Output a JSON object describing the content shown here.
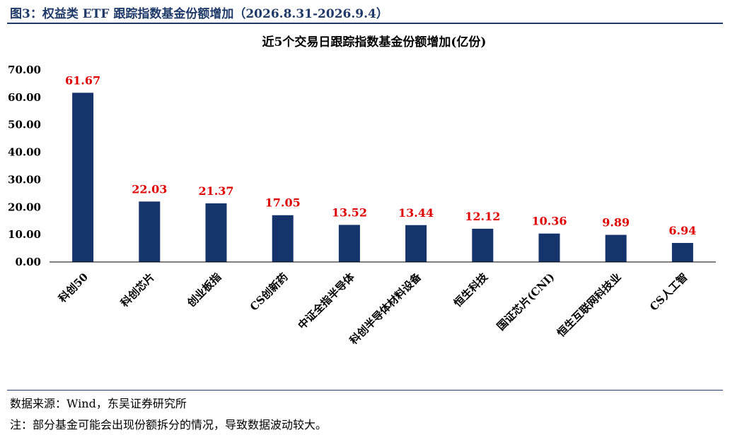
{
  "figure": {
    "title": "图3：权益类 ETF 跟踪指数基金份额增加（2026.8.31-2026.9.4）",
    "source": "数据来源：Wind，东吴证券研究所",
    "note": "注：部分基金可能会出现份额拆分的情况，导致数据波动较大。"
  },
  "colors": {
    "bar": "#14346b",
    "data_label": "#e00000",
    "accent": "#1f3a68"
  },
  "chart_data": {
    "type": "bar",
    "title": "近5个交易日跟踪指数基金份额增加(亿份)",
    "xlabel": "",
    "ylabel": "",
    "ylim": [
      0,
      70
    ],
    "yticks": [
      "0.00",
      "10.00",
      "20.00",
      "30.00",
      "40.00",
      "50.00",
      "60.00",
      "70.00"
    ],
    "grid": false,
    "legend": "none",
    "categories": [
      "科创50",
      "科创芯片",
      "创业板指",
      "CS创新药",
      "中证全指半导体",
      "科创半导体材料设备",
      "恒生科技",
      "国证芯片(CNI)",
      "恒生互联网科技业",
      "CS人工智"
    ],
    "values": [
      61.67,
      22.03,
      21.37,
      17.05,
      13.52,
      13.44,
      12.12,
      10.36,
      9.89,
      6.94
    ],
    "value_labels": [
      "61.67",
      "22.03",
      "21.37",
      "17.05",
      "13.52",
      "13.44",
      "12.12",
      "10.36",
      "9.89",
      "6.94"
    ]
  }
}
